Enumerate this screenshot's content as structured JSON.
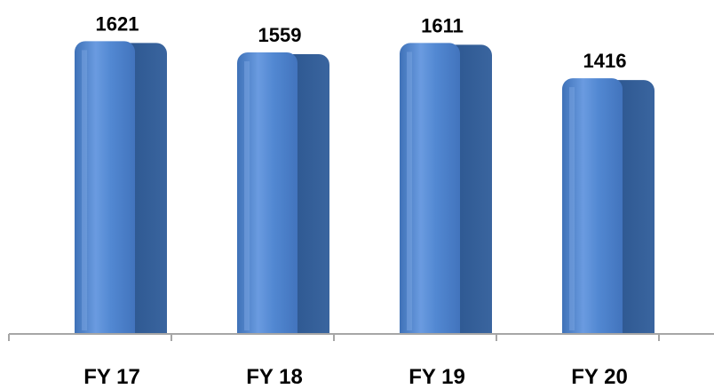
{
  "chart_data": {
    "type": "bar",
    "categories": [
      "FY 17",
      "FY 18",
      "FY 19",
      "FY 20"
    ],
    "values": [
      1621,
      1559,
      1611,
      1416
    ],
    "data_labels": [
      "1621",
      "1559",
      "1611",
      "1416"
    ],
    "title": "",
    "xlabel": "",
    "ylabel": "",
    "ylim": [
      0,
      1800
    ],
    "grid": false,
    "legend": "none",
    "style": "3d-cylinder",
    "colors": {
      "bar_front": "#4f86cf",
      "bar_highlight": "#7fa9e4",
      "bar_side": "#2f5b96",
      "axis": "#a6a6a6"
    }
  }
}
